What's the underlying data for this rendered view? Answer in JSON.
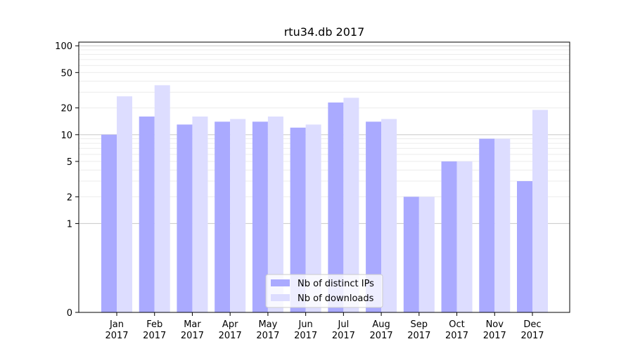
{
  "chart_data": {
    "type": "bar",
    "title": "rtu34.db 2017",
    "xlabel": "",
    "ylabel": "",
    "yscale": "symlog",
    "ylim": [
      0,
      110
    ],
    "yticks": [
      0,
      1,
      2,
      5,
      10,
      20,
      50,
      100
    ],
    "categories": [
      "Jan",
      "Feb",
      "Mar",
      "Apr",
      "May",
      "Jun",
      "Jul",
      "Aug",
      "Sep",
      "Oct",
      "Nov",
      "Dec"
    ],
    "category_sublabel": "2017",
    "series": [
      {
        "name": "Nb of distinct IPs",
        "color": "#aaaaff",
        "values": [
          10,
          16,
          13,
          14,
          14,
          12,
          23,
          14,
          2,
          5,
          9,
          3
        ]
      },
      {
        "name": "Nb of downloads",
        "color": "#ddddff",
        "values": [
          27,
          36,
          16,
          15,
          16,
          13,
          26,
          15,
          2,
          5,
          9,
          19
        ]
      }
    ],
    "grid": true,
    "legend_position": "bottom-center"
  }
}
